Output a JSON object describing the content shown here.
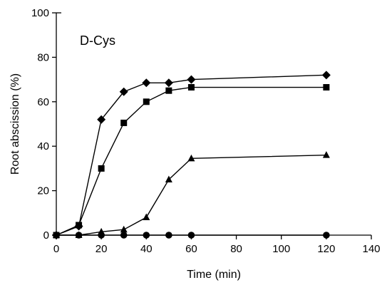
{
  "chart_data": {
    "type": "line",
    "title": "",
    "annotation": "D-Cys",
    "xlabel": "Time (min)",
    "ylabel": "Root abscission (%)",
    "xlim": [
      0,
      140
    ],
    "ylim": [
      0,
      100
    ],
    "xticks": [
      0,
      20,
      40,
      60,
      80,
      100,
      120,
      140
    ],
    "yticks": [
      0,
      20,
      40,
      60,
      80,
      100
    ],
    "grid": false,
    "series": [
      {
        "marker": "diamond",
        "color": "#000000",
        "points": [
          [
            0,
            0
          ],
          [
            10,
            4
          ],
          [
            20,
            52
          ],
          [
            30,
            64.5
          ],
          [
            40,
            68.5
          ],
          [
            50,
            68.5
          ],
          [
            60,
            70
          ],
          [
            120,
            72
          ]
        ]
      },
      {
        "marker": "square",
        "color": "#000000",
        "points": [
          [
            0,
            0
          ],
          [
            10,
            4.5
          ],
          [
            20,
            30
          ],
          [
            30,
            50.5
          ],
          [
            40,
            60
          ],
          [
            50,
            65
          ],
          [
            60,
            66.5
          ],
          [
            120,
            66.5
          ]
        ]
      },
      {
        "marker": "triangle",
        "color": "#000000",
        "points": [
          [
            0,
            0
          ],
          [
            10,
            0
          ],
          [
            20,
            1.5
          ],
          [
            30,
            2.5
          ],
          [
            40,
            8
          ],
          [
            50,
            25
          ],
          [
            60,
            34.5
          ],
          [
            120,
            36
          ]
        ]
      },
      {
        "marker": "circle",
        "color": "#000000",
        "points": [
          [
            0,
            0
          ],
          [
            10,
            0
          ],
          [
            20,
            0
          ],
          [
            30,
            0
          ],
          [
            40,
            0
          ],
          [
            50,
            0
          ],
          [
            60,
            0
          ],
          [
            120,
            0
          ]
        ]
      }
    ]
  }
}
